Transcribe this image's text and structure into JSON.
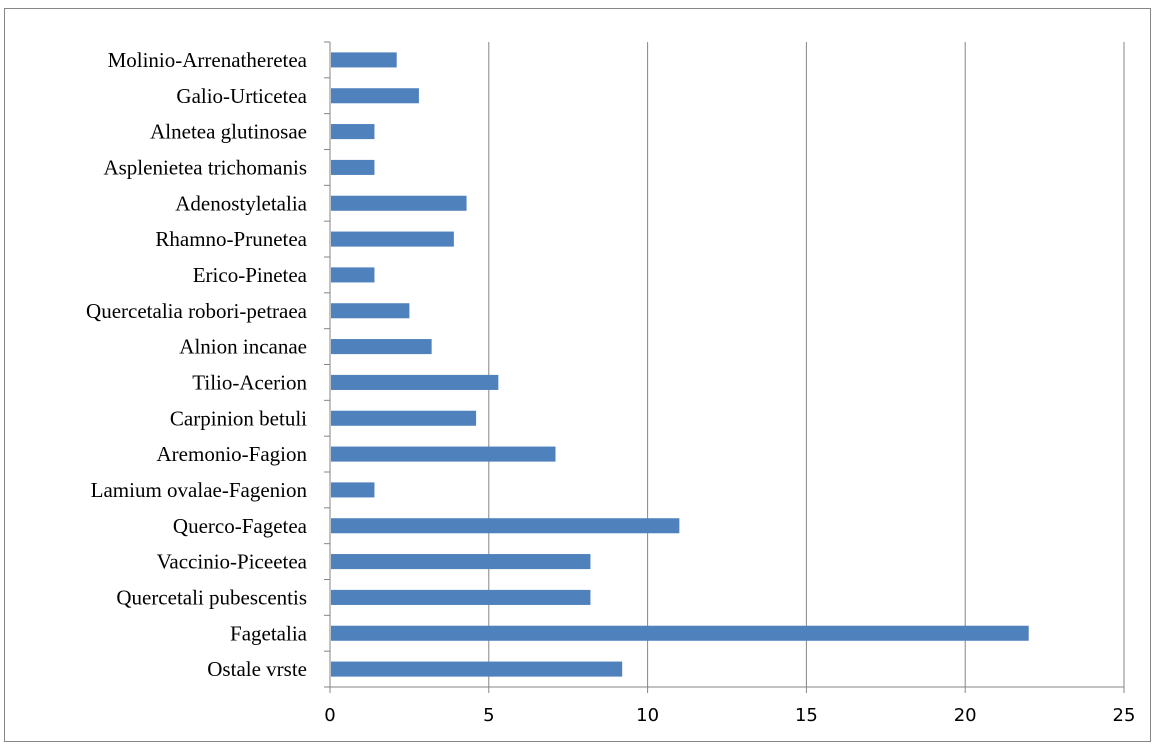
{
  "chart_data": {
    "type": "bar",
    "orientation": "horizontal",
    "title": "",
    "xlabel": "",
    "ylabel": "",
    "categories": [
      "Ostale vrste",
      "Fagetalia",
      "Quercetali pubescentis",
      "Vaccinio-Piceetea",
      "Querco-Fagetea",
      "Lamium ovalae-Fagenion",
      "Aremonio-Fagion",
      "Carpinion betuli",
      "Tilio-Acerion",
      "Alnion incanae",
      "Quercetalia robori-petraea",
      "Erico-Pinetea",
      "Rhamno-Prunetea",
      "Adenostyletalia",
      "Asplenietea trichomanis",
      "Alnetea glutinosae",
      "Galio-Urticetea",
      "Molinio-Arrenatheretea"
    ],
    "values": [
      9.2,
      22,
      8.2,
      8.2,
      11,
      1.4,
      7.1,
      4.6,
      5.3,
      3.2,
      2.5,
      1.4,
      3.9,
      4.3,
      1.4,
      1.4,
      2.8,
      2.1
    ],
    "xlim": [
      0,
      25
    ],
    "xticks": [
      "0",
      "5",
      "10",
      "15",
      "20",
      "25"
    ],
    "grid": "vertical major gridlines",
    "legend": "none",
    "bar_color": "#4F81BD",
    "grid_color": "#868686"
  }
}
